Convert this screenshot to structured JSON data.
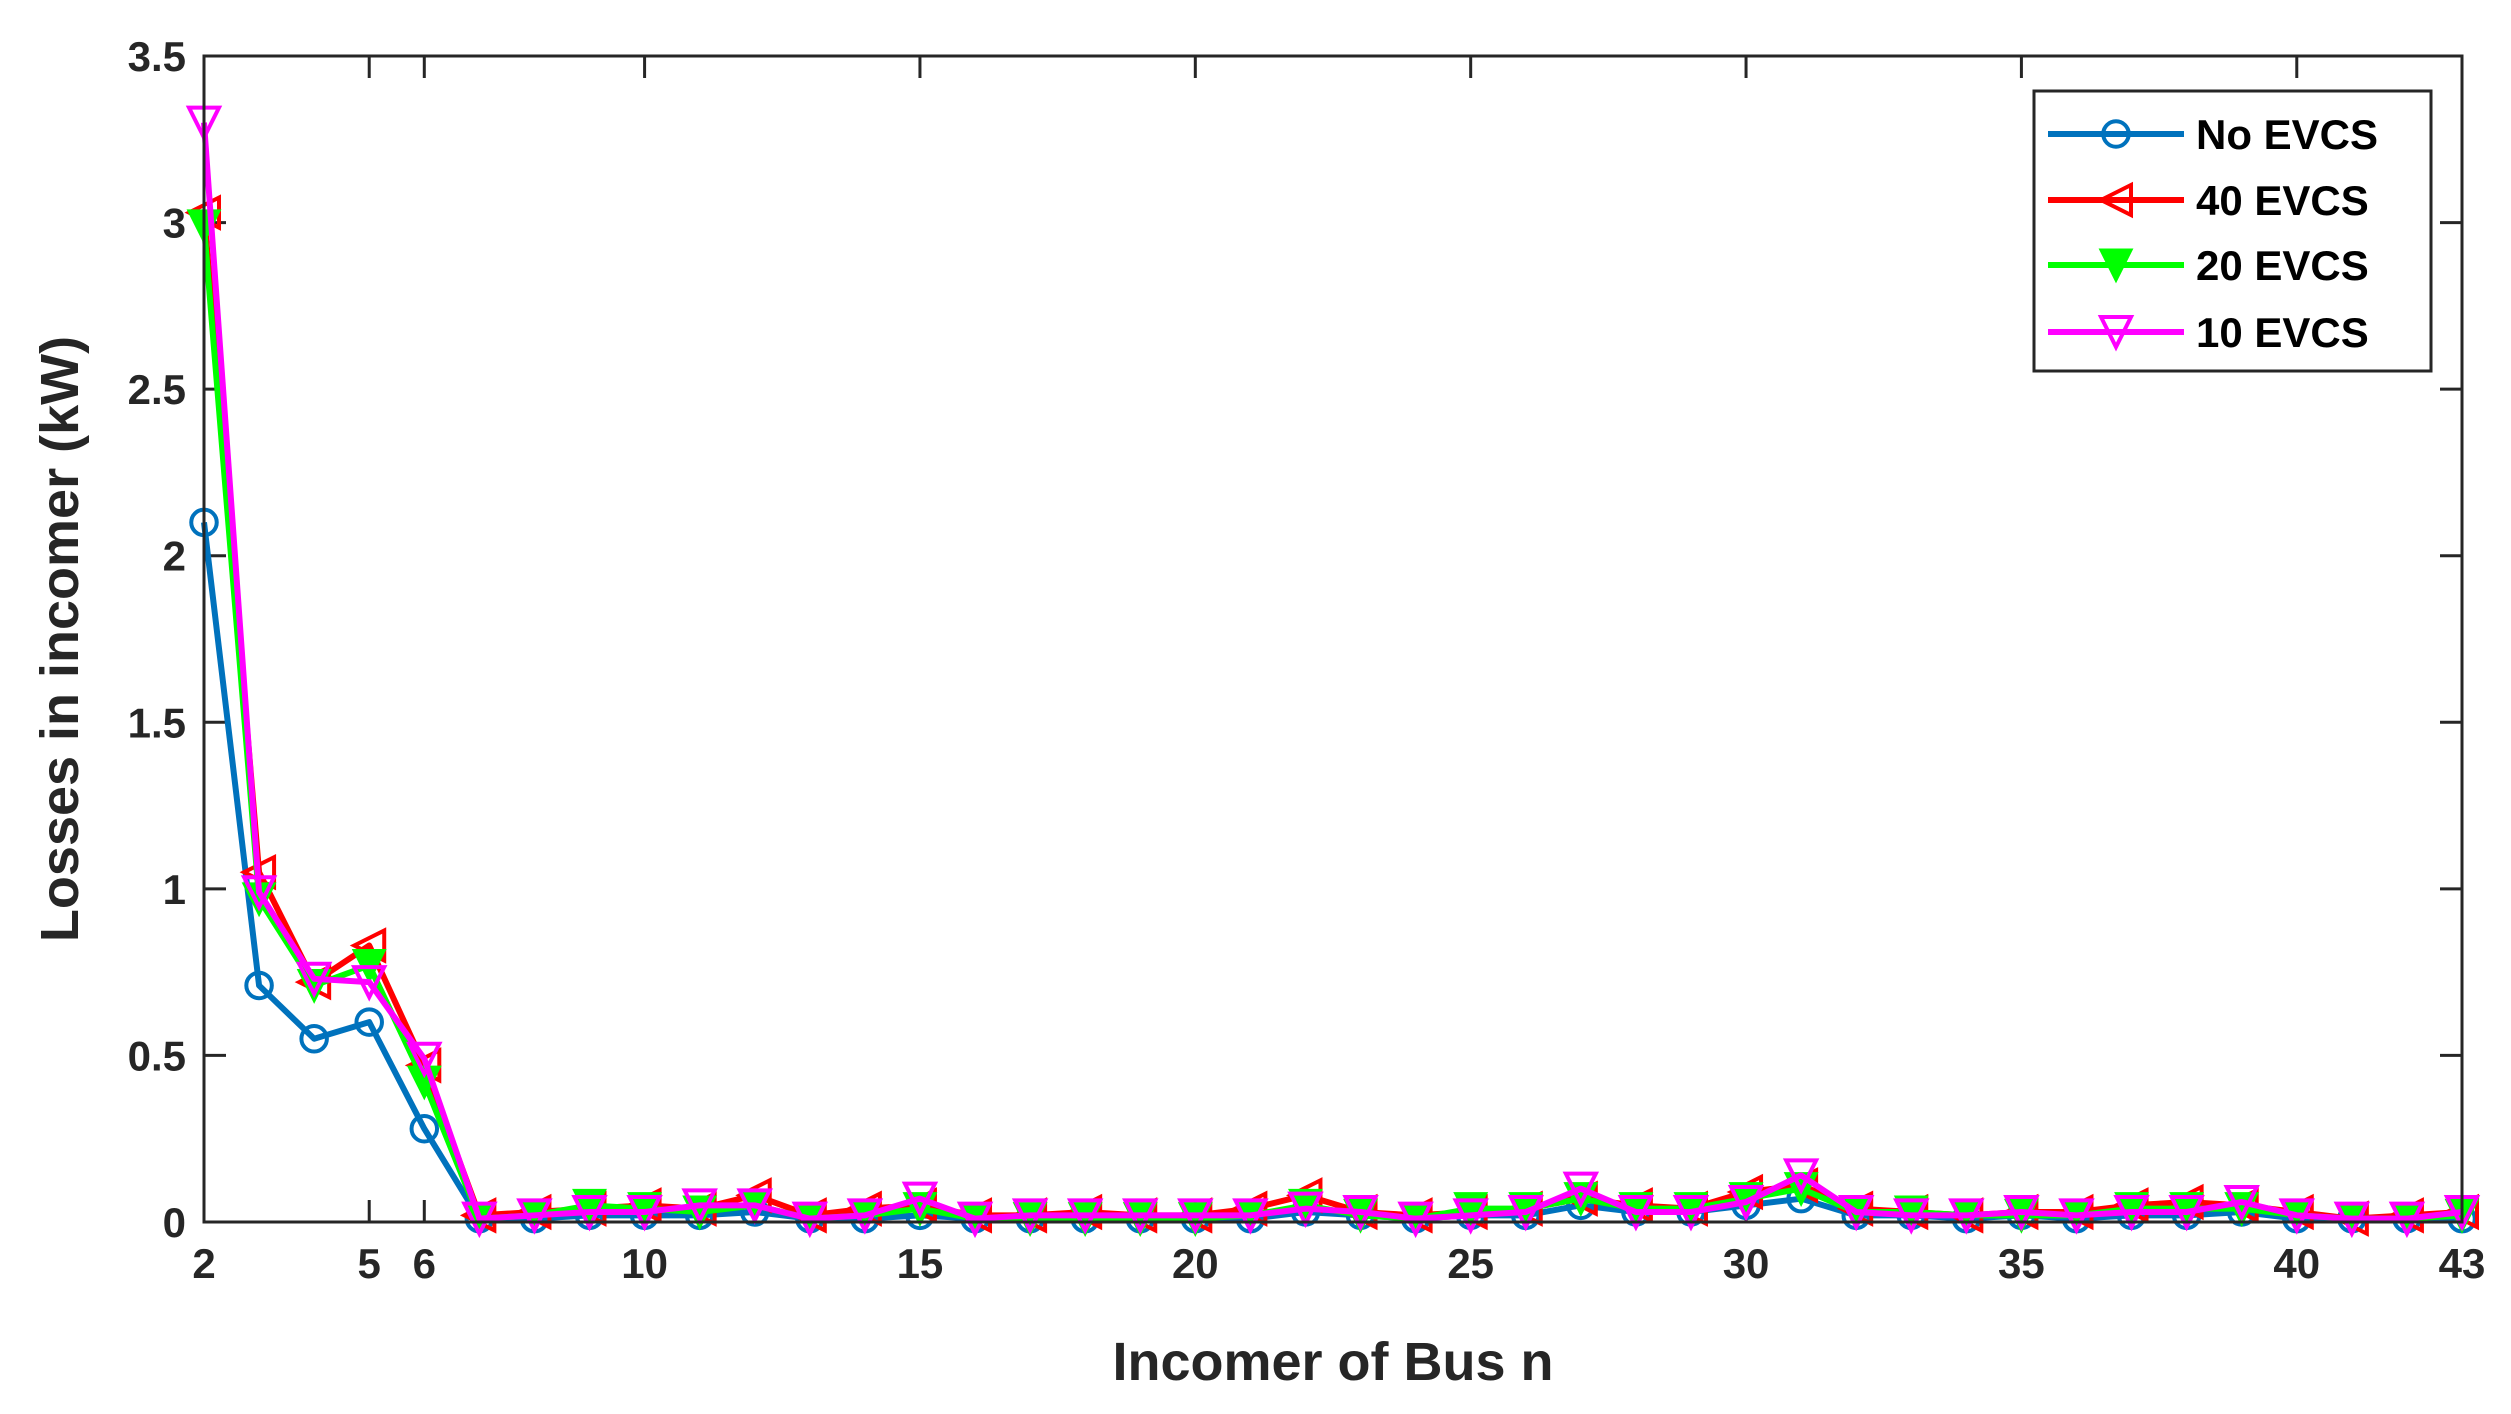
{
  "chart_data": {
    "type": "line",
    "xlabel": "Incomer of Bus n",
    "ylabel": "Losses in incomer (kW)",
    "xlim": [
      2,
      43
    ],
    "ylim": [
      0,
      3.5
    ],
    "xticks": [
      2,
      5,
      6,
      10,
      15,
      20,
      25,
      30,
      35,
      40,
      43
    ],
    "yticks": [
      0,
      0.5,
      1,
      1.5,
      2,
      2.5,
      3,
      3.5
    ],
    "ytick_labels": [
      "0",
      "0.5",
      "1",
      "1.5",
      "2",
      "2.5",
      "3",
      "3.5"
    ],
    "legend_position": "top-right",
    "grid": false,
    "x": [
      2,
      3,
      4,
      5,
      6,
      7,
      8,
      9,
      10,
      11,
      12,
      13,
      14,
      15,
      16,
      17,
      18,
      19,
      20,
      21,
      22,
      23,
      24,
      25,
      26,
      27,
      28,
      29,
      30,
      31,
      32,
      33,
      34,
      35,
      36,
      37,
      38,
      39,
      40,
      41,
      42,
      43
    ],
    "series": [
      {
        "name": "No EVCS",
        "color": "#0072BD",
        "marker": "circle",
        "values": [
          2.1,
          0.71,
          0.55,
          0.6,
          0.28,
          0.01,
          0.01,
          0.02,
          0.02,
          0.02,
          0.03,
          0.01,
          0.01,
          0.02,
          0.01,
          0.01,
          0.01,
          0.01,
          0.01,
          0.01,
          0.03,
          0.02,
          0.01,
          0.02,
          0.02,
          0.05,
          0.03,
          0.03,
          0.05,
          0.07,
          0.02,
          0.02,
          0.01,
          0.02,
          0.01,
          0.02,
          0.02,
          0.03,
          0.01,
          0.01,
          0.01,
          0.01
        ]
      },
      {
        "name": "40 EVCS",
        "color": "#FF0000",
        "marker": "triangle-left",
        "values": [
          3.03,
          1.05,
          0.72,
          0.83,
          0.47,
          0.02,
          0.03,
          0.04,
          0.05,
          0.04,
          0.08,
          0.02,
          0.04,
          0.05,
          0.02,
          0.02,
          0.03,
          0.02,
          0.02,
          0.04,
          0.08,
          0.03,
          0.02,
          0.03,
          0.04,
          0.07,
          0.05,
          0.04,
          0.09,
          0.11,
          0.04,
          0.03,
          0.02,
          0.03,
          0.03,
          0.05,
          0.06,
          0.05,
          0.03,
          0.01,
          0.02,
          0.03
        ]
      },
      {
        "name": "20 EVCS",
        "color": "#00FF00",
        "marker": "triangle-down-filled",
        "values": [
          2.99,
          0.97,
          0.71,
          0.77,
          0.42,
          0.01,
          0.02,
          0.05,
          0.04,
          0.03,
          0.05,
          0.01,
          0.02,
          0.04,
          0.01,
          0.01,
          0.01,
          0.01,
          0.01,
          0.02,
          0.05,
          0.02,
          0.01,
          0.04,
          0.04,
          0.07,
          0.04,
          0.04,
          0.07,
          0.1,
          0.03,
          0.03,
          0.02,
          0.02,
          0.02,
          0.04,
          0.04,
          0.04,
          0.02,
          0.01,
          0.01,
          0.02
        ]
      },
      {
        "name": "10 EVCS",
        "color": "#FF00FF",
        "marker": "triangle-down-open",
        "values": [
          3.3,
          0.99,
          0.73,
          0.72,
          0.49,
          0.01,
          0.02,
          0.03,
          0.03,
          0.05,
          0.05,
          0.01,
          0.02,
          0.07,
          0.01,
          0.02,
          0.02,
          0.02,
          0.02,
          0.02,
          0.04,
          0.03,
          0.01,
          0.02,
          0.03,
          0.1,
          0.03,
          0.03,
          0.06,
          0.14,
          0.03,
          0.02,
          0.02,
          0.03,
          0.02,
          0.03,
          0.03,
          0.06,
          0.02,
          0.01,
          0.01,
          0.03
        ]
      }
    ]
  }
}
